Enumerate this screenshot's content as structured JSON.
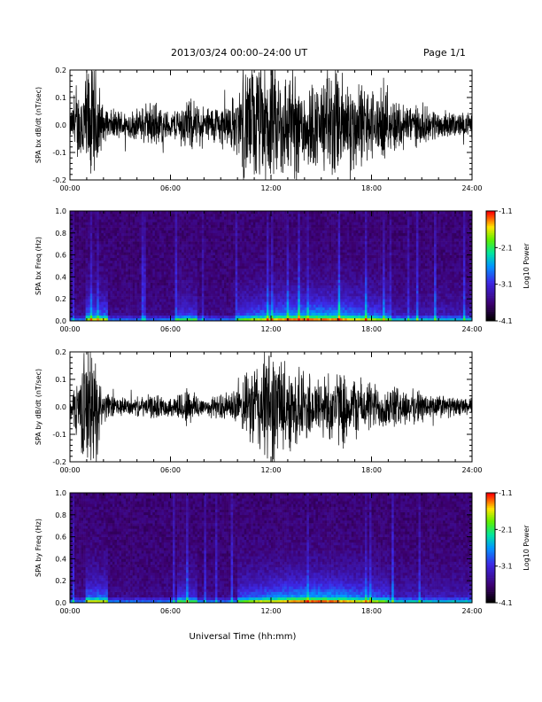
{
  "header": {
    "title": "2013/03/24  00:00–24:00 UT",
    "page": "Page 1/1"
  },
  "chart_data": [
    {
      "type": "line",
      "ylabel": "SPA bx dB/dt (nT/sec)",
      "xlim": [
        "00:00",
        "24:00"
      ],
      "ylim": [
        -0.2,
        0.2
      ],
      "x_ticks": [
        "00:00",
        "06:00",
        "12:00",
        "18:00",
        "24:00"
      ],
      "y_ticks": [
        "-0.2",
        "-0.1",
        "0.0",
        "0.1",
        "0.2"
      ],
      "x_hours": [
        0,
        1,
        1.3,
        1.6,
        2,
        3,
        4,
        5,
        6,
        7,
        8,
        9,
        10,
        10.5,
        11,
        12,
        13,
        14,
        15,
        15.5,
        16,
        17,
        18,
        19,
        20,
        21,
        22,
        23,
        24
      ],
      "envelope": [
        0.04,
        0.2,
        0.2,
        0.2,
        0.05,
        0.05,
        0.05,
        0.08,
        0.04,
        0.09,
        0.06,
        0.07,
        0.1,
        0.2,
        0.2,
        0.2,
        0.18,
        0.15,
        0.14,
        0.2,
        0.18,
        0.15,
        0.12,
        0.1,
        0.08,
        0.06,
        0.05,
        0.04,
        0.04
      ]
    },
    {
      "type": "heatmap",
      "ylabel": "SPA bx Freq (Hz)",
      "xlim": [
        "00:00",
        "24:00"
      ],
      "ylim": [
        0.0,
        1.0
      ],
      "x_ticks": [
        "00:00",
        "06:00",
        "12:00",
        "18:00",
        "24:00"
      ],
      "y_ticks": [
        "0.0",
        "0.2",
        "0.4",
        "0.6",
        "0.8",
        "1.0"
      ],
      "colorbar": {
        "label": "Log10 Power",
        "range": [
          -4.1,
          -1.1
        ],
        "ticks": [
          "-1.1",
          "-2.1",
          "-3.1",
          "-4.1"
        ]
      }
    },
    {
      "type": "line",
      "ylabel": "SPA by dB/dt (nT/sec)",
      "xlim": [
        "00:00",
        "24:00"
      ],
      "ylim": [
        -0.2,
        0.2
      ],
      "x_ticks": [
        "00:00",
        "06:00",
        "12:00",
        "18:00",
        "24:00"
      ],
      "y_ticks": [
        "-0.2",
        "-0.1",
        "0.0",
        "0.1",
        "0.2"
      ],
      "x_hours": [
        0,
        1,
        1.3,
        1.6,
        2,
        3,
        4,
        5,
        6,
        7,
        8,
        9,
        10,
        10.5,
        11,
        12,
        13,
        14,
        15,
        15.5,
        16,
        17,
        18,
        19,
        20,
        21,
        22,
        23,
        24
      ],
      "envelope": [
        0.03,
        0.2,
        0.2,
        0.15,
        0.05,
        0.03,
        0.03,
        0.04,
        0.03,
        0.07,
        0.03,
        0.04,
        0.06,
        0.1,
        0.15,
        0.2,
        0.14,
        0.12,
        0.1,
        0.12,
        0.12,
        0.1,
        0.08,
        0.07,
        0.06,
        0.05,
        0.04,
        0.03,
        0.03
      ]
    },
    {
      "type": "heatmap",
      "ylabel": "SPA by Freq (Hz)",
      "xlim": [
        "00:00",
        "24:00"
      ],
      "ylim": [
        0.0,
        1.0
      ],
      "x_ticks": [
        "00:00",
        "06:00",
        "12:00",
        "18:00",
        "24:00"
      ],
      "y_ticks": [
        "0.0",
        "0.2",
        "0.4",
        "0.6",
        "0.8",
        "1.0"
      ],
      "colorbar": {
        "label": "Log10 Power",
        "range": [
          -4.1,
          -1.1
        ],
        "ticks": [
          "-1.1",
          "-2.1",
          "-3.1",
          "-4.1"
        ]
      }
    }
  ],
  "xlabel": "Universal Time (hh:mm)",
  "colors": {
    "axis": "#000000",
    "background": "#ffffff"
  }
}
